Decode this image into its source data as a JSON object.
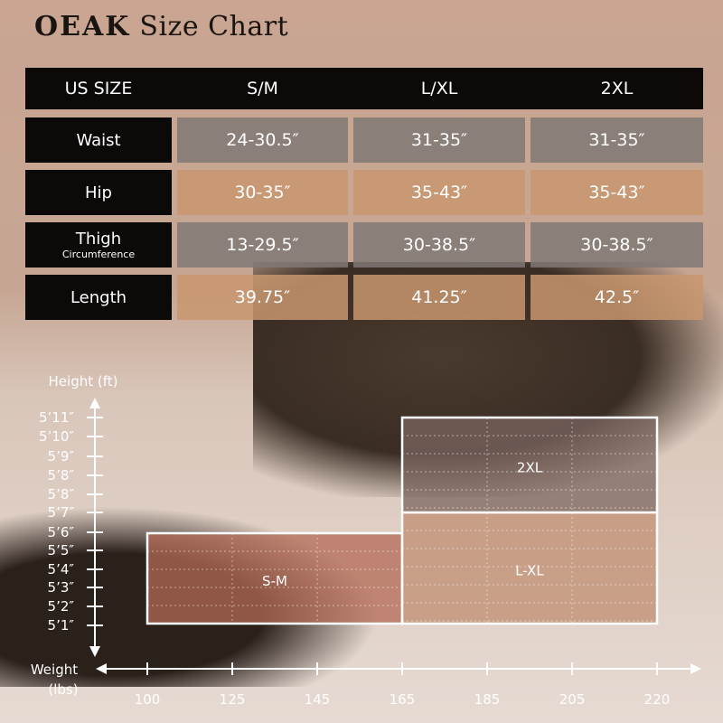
{
  "brand": "OEAK",
  "title": "Size Chart",
  "table": {
    "header": [
      "US SIZE",
      "S/M",
      "L/XL",
      "2XL"
    ],
    "rows": [
      {
        "label": "Waist",
        "sublabel": "",
        "values": [
          "24-30.5″",
          "31-35″",
          "31-35″"
        ]
      },
      {
        "label": "Hip",
        "sublabel": "",
        "values": [
          "30-35″",
          "35-43″",
          "35-43″"
        ]
      },
      {
        "label": "Thigh",
        "sublabel": "Circumference",
        "values": [
          "13-29.5″",
          "30-38.5″",
          "30-38.5″"
        ]
      },
      {
        "label": "Length",
        "sublabel": "",
        "values": [
          "39.75″",
          "41.25″",
          "42.5″"
        ]
      }
    ]
  },
  "size_chart": {
    "y_label": "Height (ft)",
    "x_label_1": "Weight",
    "x_label_2": "(lbs)",
    "y_ticks": [
      "5’1″",
      "5’2″",
      "5’3″",
      "5’4″",
      "5’5″",
      "5’6″",
      "5’7″",
      "5’8″",
      "5’8″",
      "5’9″",
      "5’10″",
      "5’11″"
    ],
    "x_ticks": [
      "100",
      "125",
      "145",
      "165",
      "185",
      "205",
      "220"
    ],
    "regions": [
      {
        "label": "S-M",
        "weight": [
          "100",
          "165"
        ],
        "height": [
          "5’1″",
          "5’5″"
        ],
        "color": "#b36a55"
      },
      {
        "label": "L-XL",
        "weight": [
          "165",
          "220"
        ],
        "height": [
          "5’1″",
          "5’6″"
        ],
        "color": "#c08e72"
      },
      {
        "label": "2XL",
        "weight": [
          "165",
          "220"
        ],
        "height": [
          "5’6″",
          "5’11″"
        ],
        "color": "#7c6560"
      }
    ]
  }
}
